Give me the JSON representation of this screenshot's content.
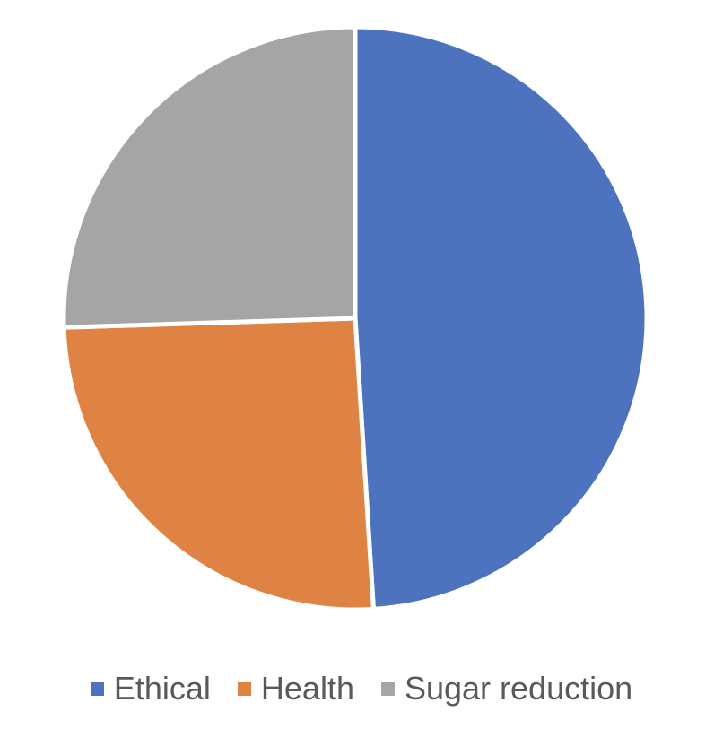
{
  "chart_data": {
    "type": "pie",
    "title": "",
    "categories": [
      "Ethical",
      "Health",
      "Sugar reduction"
    ],
    "values": [
      49,
      25.5,
      25.5
    ],
    "colors": [
      "#4e73be",
      "#df8344",
      "#a5a5a5"
    ],
    "start_angle_deg": 0,
    "direction": "clockwise",
    "legend_position": "bottom"
  }
}
